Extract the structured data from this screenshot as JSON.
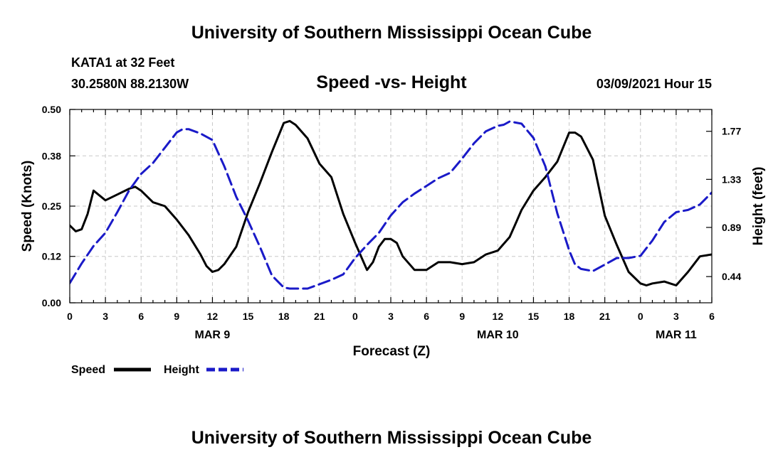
{
  "header": {
    "title": "University of Southern Mississippi Ocean Cube",
    "station": "KATA1 at 32 Feet",
    "coords": "30.2580N 88.2130W",
    "chart_title": "Speed -vs- Height",
    "timestamp": "03/09/2021 Hour 15"
  },
  "footer": {
    "title": "University of Southern Mississippi Ocean Cube"
  },
  "colors": {
    "speed": "#000000",
    "height": "#1a1ac8"
  },
  "chart_data": {
    "type": "line",
    "title": "Speed -vs- Height",
    "xlabel": "Forecast (Z)",
    "ylabel": "Speed (Knots)",
    "y2label": "Height (feet)",
    "xlim": [
      0,
      54
    ],
    "ylim": [
      0,
      0.5
    ],
    "y2lim": [
      0.2,
      1.97
    ],
    "x_tick_values": [
      0,
      3,
      6,
      9,
      12,
      15,
      18,
      21,
      24,
      27,
      30,
      33,
      36,
      39,
      42,
      45,
      48,
      51,
      54
    ],
    "x_tick_labels": [
      "0",
      "3",
      "6",
      "9",
      "12",
      "15",
      "18",
      "21",
      "0",
      "3",
      "6",
      "9",
      "12",
      "15",
      "18",
      "21",
      "0",
      "3",
      "6"
    ],
    "date_labels": [
      {
        "x": 12,
        "label": "MAR 9"
      },
      {
        "x": 36,
        "label": "MAR 10"
      },
      {
        "x": 51,
        "label": "MAR 11"
      }
    ],
    "y_ticks": [
      0.0,
      0.12,
      0.25,
      0.38,
      0.5
    ],
    "y_tick_labels": [
      "0.00",
      "0.12",
      "0.25",
      "0.38",
      "0.50"
    ],
    "y2_ticks": [
      0.44,
      0.89,
      1.33,
      1.77
    ],
    "y2_tick_labels": [
      "0.44",
      "0.89",
      "1.33",
      "1.77"
    ],
    "grid": true,
    "legend_position": "bottom-left",
    "series": [
      {
        "name": "Speed",
        "axis": "left",
        "style": "solid",
        "x": [
          0,
          0.5,
          1,
          1.5,
          2,
          3,
          4,
          5,
          5.5,
          6,
          7,
          8,
          9,
          10,
          11,
          11.5,
          12,
          12.5,
          13,
          14,
          15,
          16,
          17,
          18,
          18.5,
          19,
          20,
          21,
          22,
          23,
          24,
          25,
          25.5,
          26,
          26.5,
          27,
          27.5,
          28,
          29,
          30,
          30.5,
          31,
          32,
          33,
          34,
          35,
          36,
          37,
          37.5,
          38,
          39,
          40,
          41,
          42,
          42.5,
          43,
          44,
          45,
          46,
          47,
          48,
          48.5,
          49,
          50,
          50.5,
          51,
          52,
          53,
          54
        ],
        "values": [
          0.2,
          0.185,
          0.19,
          0.23,
          0.29,
          0.265,
          0.28,
          0.295,
          0.3,
          0.29,
          0.26,
          0.25,
          0.215,
          0.175,
          0.125,
          0.095,
          0.08,
          0.085,
          0.1,
          0.145,
          0.235,
          0.31,
          0.39,
          0.465,
          0.47,
          0.46,
          0.425,
          0.36,
          0.325,
          0.23,
          0.155,
          0.085,
          0.105,
          0.145,
          0.165,
          0.165,
          0.155,
          0.12,
          0.085,
          0.085,
          0.095,
          0.105,
          0.105,
          0.1,
          0.105,
          0.125,
          0.135,
          0.17,
          0.205,
          0.24,
          0.29,
          0.325,
          0.365,
          0.44,
          0.44,
          0.43,
          0.37,
          0.225,
          0.15,
          0.08,
          0.05,
          0.045,
          0.05,
          0.055,
          0.05,
          0.045,
          0.08,
          0.12,
          0.125
        ]
      },
      {
        "name": "Height",
        "axis": "right",
        "style": "dashed",
        "x": [
          0,
          1,
          2,
          3,
          4,
          5,
          6,
          7,
          8,
          9,
          9.5,
          10,
          11,
          12,
          13,
          14,
          15,
          16,
          17,
          18,
          18.5,
          19,
          19.5,
          20,
          21,
          22,
          23,
          24,
          25,
          26,
          27,
          28,
          29,
          30,
          31,
          32,
          33,
          34,
          35,
          36,
          36.5,
          37,
          38,
          39,
          40,
          41,
          42,
          42.5,
          43,
          44,
          45,
          46,
          47,
          48,
          48.5,
          49,
          50,
          51,
          52,
          53,
          54
        ],
        "values": [
          0.38,
          0.56,
          0.72,
          0.84,
          1.03,
          1.23,
          1.38,
          1.48,
          1.62,
          1.76,
          1.79,
          1.79,
          1.75,
          1.69,
          1.45,
          1.17,
          0.95,
          0.71,
          0.45,
          0.34,
          0.33,
          0.33,
          0.33,
          0.33,
          0.37,
          0.41,
          0.46,
          0.61,
          0.73,
          0.84,
          1.0,
          1.12,
          1.2,
          1.27,
          1.34,
          1.39,
          1.52,
          1.66,
          1.77,
          1.82,
          1.83,
          1.86,
          1.84,
          1.71,
          1.45,
          1.02,
          0.68,
          0.55,
          0.51,
          0.49,
          0.55,
          0.61,
          0.61,
          0.63,
          0.7,
          0.77,
          0.94,
          1.03,
          1.05,
          1.1,
          1.21
        ]
      }
    ]
  }
}
